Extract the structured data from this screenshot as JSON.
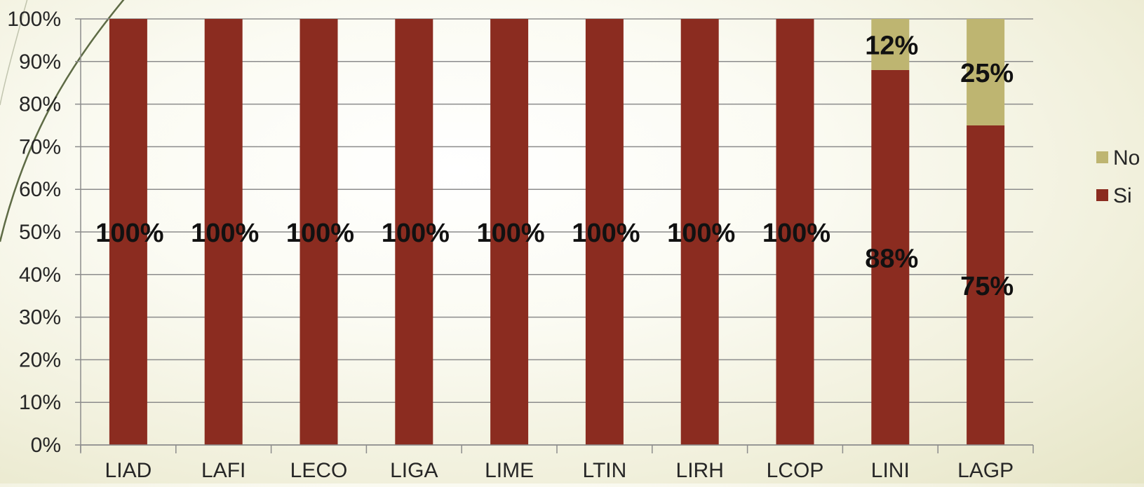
{
  "colors": {
    "si": "#8b2c20",
    "no": "#beb571",
    "grid": "#8c8c8c",
    "decor_curve": "#5e6b45"
  },
  "chart_data": {
    "type": "bar",
    "stacked": true,
    "categories": [
      "LIAD",
      "LAFI",
      "LECO",
      "LIGA",
      "LIME",
      "LTIN",
      "LIRH",
      "LCOP",
      "LINI",
      "LAGP"
    ],
    "series": [
      {
        "name": "Si",
        "values": [
          100,
          100,
          100,
          100,
          100,
          100,
          100,
          100,
          88,
          75
        ],
        "labels": [
          "100%",
          "100%",
          "100%",
          "100%",
          "100%",
          "100%",
          "100%",
          "100%",
          "88%",
          "75%"
        ]
      },
      {
        "name": "No",
        "values": [
          0,
          0,
          0,
          0,
          0,
          0,
          0,
          0,
          12,
          25
        ],
        "labels": [
          "",
          "",
          "",
          "",
          "",
          "",
          "",
          "",
          "12%",
          "25%"
        ]
      }
    ],
    "ylim": [
      0,
      100
    ],
    "yticks": [
      "0%",
      "10%",
      "20%",
      "30%",
      "40%",
      "50%",
      "60%",
      "70%",
      "80%",
      "90%",
      "100%"
    ],
    "grid": true,
    "legend_placement": "right",
    "legend": [
      "No",
      "Si"
    ],
    "title": "",
    "xlabel": "",
    "ylabel": ""
  }
}
